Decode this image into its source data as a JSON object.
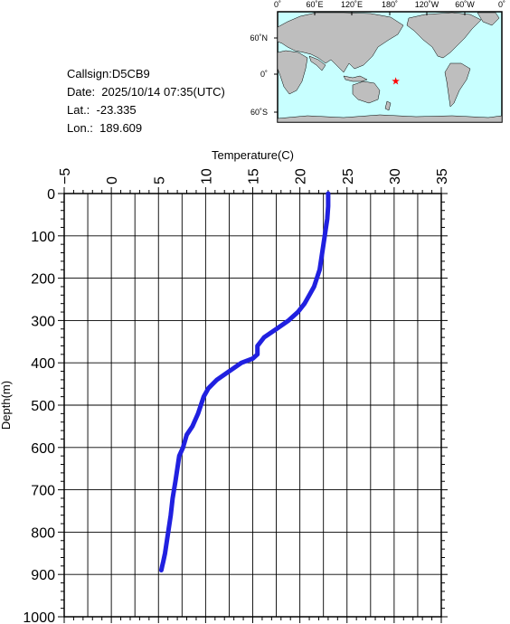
{
  "info": {
    "callsign": "Callsign:D5CB9",
    "date": "Date:  2025/10/14 07:35(UTC)",
    "lat": "Lat.:  -23.335",
    "lon": "Lon.:  189.609"
  },
  "map": {
    "lon_ticks": [
      "0˚",
      "60˚E",
      "120˚E",
      "180˚",
      "120˚W",
      "60˚W",
      "0˚"
    ],
    "lat_ticks": [
      "60˚N",
      "0˚",
      "60˚S"
    ],
    "ocean_color": "#c8ffff",
    "land_color": "#bebebe",
    "marker_color": "#ff0000",
    "marker": {
      "lat": -23.335,
      "lon": 189.609
    }
  },
  "chart_data": {
    "type": "line",
    "title": "",
    "xlabel": "Temperature(C)",
    "ylabel": "Depth(m)",
    "xlim": [
      -5,
      35
    ],
    "ylim": [
      0,
      1000
    ],
    "y_inverted": true,
    "x_ticks": [
      -5,
      0,
      5,
      10,
      15,
      20,
      25,
      30,
      35
    ],
    "y_ticks": [
      0,
      100,
      200,
      300,
      400,
      500,
      600,
      700,
      800,
      900,
      1000
    ],
    "grid": true,
    "line_color": "#2020e0",
    "series": [
      {
        "x": [
          23.0,
          23.0,
          22.9,
          22.7,
          22.5,
          22.3,
          22.1,
          21.8,
          21.5,
          21.0,
          20.5,
          19.8,
          18.8,
          17.5,
          16.2,
          15.5,
          15.5,
          15.0,
          13.8,
          12.5,
          11.2,
          10.3,
          9.8,
          9.2,
          8.6,
          8.0,
          7.6,
          7.2,
          7.0,
          6.8,
          6.5,
          6.3,
          6.1,
          5.9,
          5.7,
          5.5,
          5.4,
          5.3
        ],
        "y": [
          0,
          30,
          60,
          90,
          120,
          150,
          180,
          200,
          220,
          240,
          260,
          280,
          300,
          320,
          340,
          360,
          380,
          390,
          400,
          420,
          440,
          460,
          480,
          520,
          550,
          570,
          600,
          620,
          650,
          680,
          720,
          760,
          790,
          820,
          850,
          870,
          880,
          890
        ]
      }
    ]
  }
}
